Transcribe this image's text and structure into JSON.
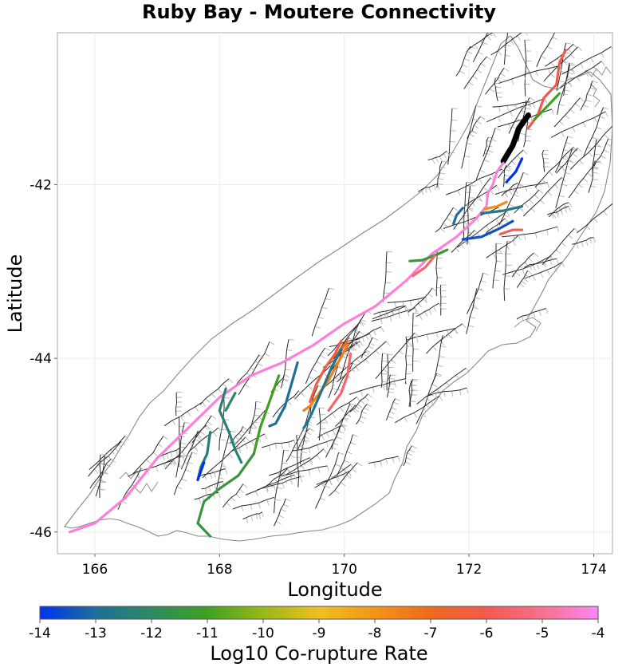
{
  "title": "Ruby Bay - Moutere Connectivity",
  "x_axis": {
    "label": "Longitude",
    "range": [
      165.4,
      174.3
    ],
    "ticks": [
      "166",
      "168",
      "170",
      "172",
      "174"
    ],
    "tick_values": [
      166,
      168,
      170,
      172,
      174
    ]
  },
  "y_axis": {
    "label": "Latitude",
    "range": [
      -46.25,
      -40.25
    ],
    "ticks": [
      "-42",
      "-44",
      "-46"
    ],
    "tick_values": [
      -42,
      -44,
      -46
    ]
  },
  "colorbar": {
    "label": "Log10 Co-rupture Rate",
    "range": [
      -14,
      -4
    ],
    "ticks": [
      "-14",
      "-13",
      "-12",
      "-11",
      "-10",
      "-9",
      "-8",
      "-7",
      "-6",
      "-5",
      "-4"
    ],
    "tick_values": [
      -14,
      -13,
      -12,
      -11,
      -10,
      -9,
      -8,
      -7,
      -6,
      -5,
      -4
    ],
    "colors": [
      "#0033ee",
      "#1e6e9a",
      "#2e8a60",
      "#3fa020",
      "#98b818",
      "#f0c020",
      "#f29518",
      "#ef6a1c",
      "#f25a4e",
      "#f6708e",
      "#fb88f6"
    ]
  },
  "legend": "none",
  "grid": true,
  "map_colors": {
    "coast": "#888888",
    "fault_trace": "#2a2a2a",
    "fault_outline": "#b4b4b4",
    "scenario_fault": "#000000"
  },
  "rupture_faults": [
    {
      "rate": -6.0,
      "path": [
        [
          173.55,
          -40.45
        ],
        [
          173.45,
          -40.6
        ],
        [
          173.4,
          -40.85
        ],
        [
          173.2,
          -41.0
        ],
        [
          173.1,
          -41.2
        ],
        [
          172.95,
          -41.35
        ]
      ]
    },
    {
      "rate": -11.0,
      "path": [
        [
          173.45,
          -40.95
        ],
        [
          173.25,
          -41.1
        ],
        [
          173.05,
          -41.25
        ]
      ]
    },
    {
      "rate": null,
      "scenario": true,
      "path": [
        [
          172.95,
          -41.2
        ],
        [
          172.8,
          -41.35
        ],
        [
          172.7,
          -41.55
        ],
        [
          172.55,
          -41.73
        ]
      ]
    },
    {
      "rate": -14.0,
      "path": [
        [
          172.85,
          -41.7
        ],
        [
          172.75,
          -41.85
        ],
        [
          172.6,
          -41.97
        ]
      ]
    },
    {
      "rate": -4.3,
      "path": [
        [
          172.55,
          -41.75
        ],
        [
          172.45,
          -41.85
        ],
        [
          172.38,
          -42.0
        ],
        [
          172.3,
          -42.1
        ],
        [
          172.28,
          -42.25
        ],
        [
          172.1,
          -42.4
        ],
        [
          171.8,
          -42.6
        ],
        [
          171.4,
          -42.8
        ],
        [
          171.0,
          -43.1
        ],
        [
          170.5,
          -43.4
        ],
        [
          170.0,
          -43.6
        ],
        [
          169.5,
          -43.85
        ],
        [
          169.0,
          -44.05
        ],
        [
          168.5,
          -44.2
        ],
        [
          168.0,
          -44.45
        ],
        [
          167.5,
          -44.8
        ],
        [
          167.0,
          -45.15
        ],
        [
          166.5,
          -45.6
        ],
        [
          166.0,
          -45.9
        ],
        [
          165.6,
          -46.0
        ]
      ]
    },
    {
      "rate": -7.8,
      "path": [
        [
          172.25,
          -42.28
        ],
        [
          172.45,
          -42.25
        ],
        [
          172.6,
          -42.2
        ]
      ]
    },
    {
      "rate": -12.6,
      "path": [
        [
          172.2,
          -42.33
        ],
        [
          172.55,
          -42.3
        ],
        [
          172.85,
          -42.25
        ]
      ]
    },
    {
      "rate": -13.0,
      "path": [
        [
          171.75,
          -42.45
        ],
        [
          171.8,
          -42.35
        ],
        [
          171.9,
          -42.27
        ]
      ]
    },
    {
      "rate": -13.5,
      "path": [
        [
          171.9,
          -42.63
        ],
        [
          172.2,
          -42.6
        ],
        [
          172.5,
          -42.5
        ],
        [
          172.7,
          -42.42
        ]
      ]
    },
    {
      "rate": -5.8,
      "path": [
        [
          172.5,
          -42.57
        ],
        [
          172.7,
          -42.52
        ],
        [
          172.85,
          -42.52
        ]
      ]
    },
    {
      "rate": -11.3,
      "path": [
        [
          171.05,
          -42.88
        ],
        [
          171.25,
          -42.87
        ],
        [
          171.5,
          -42.8
        ],
        [
          171.65,
          -42.75
        ]
      ]
    },
    {
      "rate": -5.5,
      "path": [
        [
          171.1,
          -43.05
        ],
        [
          171.3,
          -42.95
        ],
        [
          171.45,
          -42.82
        ]
      ]
    },
    {
      "rate": -7.0,
      "path": [
        [
          170.05,
          -43.8
        ],
        [
          169.9,
          -43.95
        ],
        [
          169.8,
          -44.1
        ]
      ]
    },
    {
      "rate": -6.2,
      "path": [
        [
          169.95,
          -43.8
        ],
        [
          169.85,
          -43.95
        ],
        [
          169.7,
          -44.1
        ],
        [
          169.55,
          -44.3
        ],
        [
          169.45,
          -44.5
        ]
      ]
    },
    {
      "rate": -7.5,
      "path": [
        [
          170.05,
          -43.85
        ],
        [
          169.9,
          -44.05
        ],
        [
          169.75,
          -44.25
        ],
        [
          169.6,
          -44.4
        ],
        [
          169.45,
          -44.55
        ],
        [
          169.35,
          -44.6
        ]
      ]
    },
    {
      "rate": -12.8,
      "path": [
        [
          169.95,
          -43.9
        ],
        [
          169.8,
          -44.1
        ],
        [
          169.65,
          -44.35
        ],
        [
          169.5,
          -44.6
        ],
        [
          169.4,
          -44.75
        ],
        [
          169.35,
          -44.8
        ]
      ]
    },
    {
      "rate": -5.5,
      "path": [
        [
          170.1,
          -43.95
        ],
        [
          170.05,
          -44.2
        ],
        [
          169.95,
          -44.4
        ],
        [
          169.75,
          -44.6
        ]
      ]
    },
    {
      "rate": -13.0,
      "path": [
        [
          169.25,
          -44.05
        ],
        [
          169.15,
          -44.3
        ],
        [
          169.05,
          -44.55
        ],
        [
          168.9,
          -44.75
        ],
        [
          168.8,
          -44.78
        ]
      ]
    },
    {
      "rate": -11.0,
      "path": [
        [
          168.95,
          -44.2
        ],
        [
          168.8,
          -44.5
        ],
        [
          168.65,
          -44.8
        ],
        [
          168.55,
          -45.1
        ]
      ]
    },
    {
      "rate": -11.5,
      "path": [
        [
          168.55,
          -45.1
        ],
        [
          168.3,
          -45.35
        ],
        [
          168.0,
          -45.5
        ],
        [
          167.75,
          -45.65
        ],
        [
          167.65,
          -45.9
        ],
        [
          167.85,
          -46.05
        ]
      ]
    },
    {
      "rate": -12.3,
      "path": [
        [
          168.1,
          -44.35
        ],
        [
          168.0,
          -44.6
        ],
        [
          168.15,
          -44.85
        ],
        [
          168.25,
          -45.05
        ],
        [
          168.35,
          -45.2
        ]
      ]
    },
    {
      "rate": -12.0,
      "path": [
        [
          168.25,
          -44.4
        ],
        [
          168.1,
          -44.6
        ]
      ]
    },
    {
      "rate": -12.5,
      "path": [
        [
          167.85,
          -44.85
        ],
        [
          167.8,
          -45.1
        ],
        [
          167.7,
          -45.25
        ],
        [
          167.65,
          -45.4
        ]
      ]
    },
    {
      "rate": -14.0,
      "path": [
        [
          167.75,
          -45.2
        ],
        [
          167.65,
          -45.4
        ]
      ]
    }
  ]
}
